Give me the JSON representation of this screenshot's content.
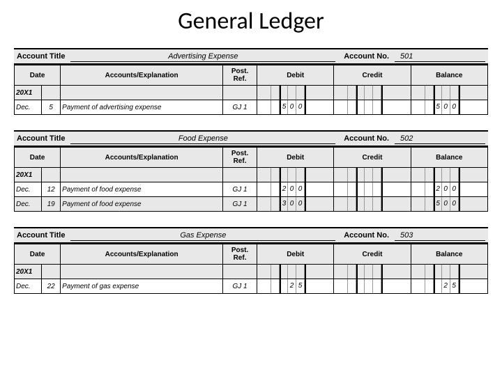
{
  "page_title": "General Ledger",
  "labels": {
    "account_title": "Account Title",
    "account_no": "Account No.",
    "date": "Date",
    "accounts_explanation": "Accounts/Explanation",
    "post_ref": "Post. Ref.",
    "debit": "Debit",
    "credit": "Credit",
    "balance": "Balance"
  },
  "colors": {
    "header_bg": "#e8e8e8",
    "row_alt_bg": "#e8e8e8",
    "row_bg": "#ffffff",
    "border": "#000000",
    "subcell_border": "#999999"
  },
  "ledgers": [
    {
      "title": "Advertising Expense",
      "account_no": "501",
      "year": "20X1",
      "rows": [
        {
          "month": "Dec.",
          "day": "5",
          "explanation": "Payment of advertising expense",
          "ref": "GJ 1",
          "debit": [
            "",
            "",
            "5",
            "0",
            "0",
            ""
          ],
          "credit": [
            "",
            "",
            "",
            "",
            "",
            ""
          ],
          "balance": [
            "",
            "",
            "5",
            "0",
            "0",
            ""
          ]
        }
      ]
    },
    {
      "title": "Food Expense",
      "account_no": "502",
      "year": "20X1",
      "rows": [
        {
          "month": "Dec.",
          "day": "12",
          "explanation": "Payment of food expense",
          "ref": "GJ 1",
          "debit": [
            "",
            "",
            "2",
            "0",
            "0",
            ""
          ],
          "credit": [
            "",
            "",
            "",
            "",
            "",
            ""
          ],
          "balance": [
            "",
            "",
            "2",
            "0",
            "0",
            ""
          ]
        },
        {
          "month": "Dec.",
          "day": "19",
          "explanation": "Payment of food expense",
          "ref": "GJ 1",
          "debit": [
            "",
            "",
            "3",
            "0",
            "0",
            ""
          ],
          "credit": [
            "",
            "",
            "",
            "",
            "",
            ""
          ],
          "balance": [
            "",
            "",
            "5",
            "0",
            "0",
            ""
          ]
        }
      ]
    },
    {
      "title": "Gas Expense",
      "account_no": "503",
      "year": "20X1",
      "rows": [
        {
          "month": "Dec.",
          "day": "22",
          "explanation": "Payment of gas expense",
          "ref": "GJ 1",
          "debit": [
            "",
            "",
            "",
            "2",
            "5",
            ""
          ],
          "credit": [
            "",
            "",
            "",
            "",
            "",
            ""
          ],
          "balance": [
            "",
            "",
            "",
            "2",
            "5",
            ""
          ]
        }
      ]
    }
  ]
}
